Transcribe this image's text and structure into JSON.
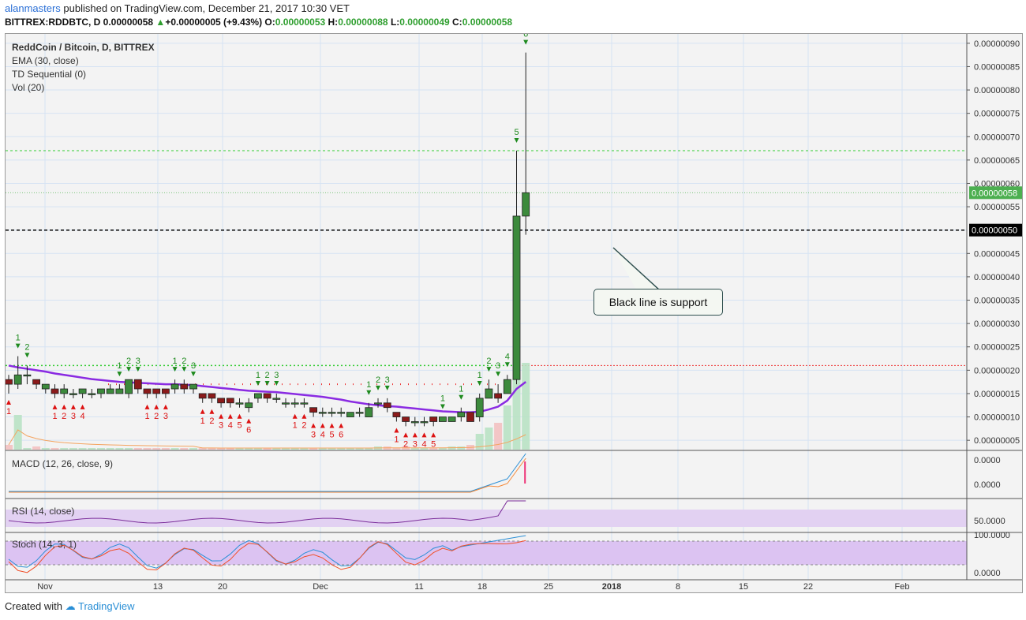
{
  "header": {
    "user": "alanmasters",
    "published": " published on TradingView.com, December 21, 2017 10:30 VET",
    "symbol": "BITTREX:RDDBTC, D",
    "last": "0.00000058",
    "change": "+0.00000005 (+9.43%)",
    "o_label": "O:",
    "o": "0.00000053",
    "h_label": "H:",
    "h": "0.00000088",
    "l_label": "L:",
    "l": "0.00000049",
    "c_label": "C:",
    "c": "0.00000058"
  },
  "legend": {
    "title": "ReddCoin / Bitcoin, D, BITTREX",
    "ema": "EMA (30, close)",
    "td": "TD Sequential (0)",
    "vol": "Vol (20)",
    "macd": "MACD (12, 26, close, 9)",
    "rsi": "RSI (14, close)",
    "stoch": "Stoch (14, 3, 1)"
  },
  "annotation": {
    "text": "Black line is support"
  },
  "price_axis": {
    "ticks": [
      "0.00000090",
      "0.00000085",
      "0.00000080",
      "0.00000075",
      "0.00000070",
      "0.00000065",
      "0.00000060",
      "0.00000055",
      "0.00000045",
      "0.00000040",
      "0.00000035",
      "0.00000030",
      "0.00000025",
      "0.00000020",
      "0.00000015",
      "0.00000010",
      "0.00000005"
    ],
    "last_price_label": "0.00000058",
    "support_label": "0.00000050"
  },
  "macd_axis": {
    "ticks": [
      "0.0000",
      "0.0000"
    ]
  },
  "rsi_axis": {
    "ticks": [
      "50.0000"
    ]
  },
  "stoch_axis": {
    "ticks": [
      "100.0000",
      "0.0000"
    ]
  },
  "time_axis": {
    "labels": [
      "Nov",
      "13",
      "20",
      "Dec",
      "11",
      "18",
      "25",
      "2018",
      "8",
      "15",
      "22",
      "Feb"
    ],
    "bold": [
      "2018"
    ]
  },
  "colors": {
    "up": "#3c8a3c",
    "down": "#8b1a1a",
    "ema": "#8a2be2",
    "support": "#000000",
    "resistance": "#33cc33",
    "red_level": "#ee3333"
  },
  "footer": {
    "created_with": "Created with",
    "brand": "TradingView"
  },
  "chart_data": {
    "type": "candlestick",
    "title": "ReddCoin / Bitcoin, D, BITTREX",
    "y_unit": "BTC",
    "ylim": [
      3e-08,
      9.2e-07
    ],
    "support": 5e-07,
    "levels": [
      6.7e-07,
      2.1e-07
    ],
    "candles": [
      {
        "o": 18,
        "c": 17,
        "h": 19,
        "l": 15,
        "td": "1",
        "tdc": "r"
      },
      {
        "o": 17,
        "c": 19,
        "h": 23,
        "l": 16,
        "td": "1",
        "tdc": "g"
      },
      {
        "o": 19,
        "c": 19,
        "h": 21,
        "l": 17,
        "td": "2",
        "tdc": "g"
      },
      {
        "o": 18,
        "c": 17,
        "h": 18,
        "l": 16
      },
      {
        "o": 16,
        "c": 17,
        "h": 17,
        "l": 15
      },
      {
        "o": 16,
        "c": 15,
        "h": 17,
        "l": 14,
        "td": "1",
        "tdc": "r"
      },
      {
        "o": 15,
        "c": 16,
        "h": 17,
        "l": 14,
        "td": "2",
        "tdc": "r"
      },
      {
        "o": 15,
        "c": 15,
        "h": 16,
        "l": 14,
        "td": "3",
        "tdc": "r"
      },
      {
        "o": 15,
        "c": 16,
        "h": 16,
        "l": 14,
        "td": "4",
        "tdc": "r"
      },
      {
        "o": 15,
        "c": 15,
        "h": 16,
        "l": 14
      },
      {
        "o": 15,
        "c": 16,
        "h": 16,
        "l": 14
      },
      {
        "o": 15,
        "c": 16,
        "h": 17,
        "l": 15
      },
      {
        "o": 15,
        "c": 16,
        "h": 17,
        "l": 15,
        "td": "1",
        "tdc": "g"
      },
      {
        "o": 15,
        "c": 18,
        "h": 18,
        "l": 14,
        "td": "2",
        "tdc": "g"
      },
      {
        "o": 18,
        "c": 16,
        "h": 18,
        "l": 15,
        "td": "3",
        "tdc": "g"
      },
      {
        "o": 16,
        "c": 15,
        "h": 16,
        "l": 14,
        "td": "1",
        "tdc": "r"
      },
      {
        "o": 16,
        "c": 15,
        "h": 16,
        "l": 14,
        "td": "2",
        "tdc": "r"
      },
      {
        "o": 16,
        "c": 15,
        "h": 16,
        "l": 14,
        "td": "3",
        "tdc": "r"
      },
      {
        "o": 16,
        "c": 17,
        "h": 18,
        "l": 15,
        "td": "1",
        "tdc": "g"
      },
      {
        "o": 17,
        "c": 16,
        "h": 18,
        "l": 15,
        "td": "2",
        "tdc": "g"
      },
      {
        "o": 16,
        "c": 17,
        "h": 17,
        "l": 15,
        "td": "3",
        "tdc": "g"
      },
      {
        "o": 15,
        "c": 14,
        "h": 15,
        "l": 13,
        "td": "1",
        "tdc": "r"
      },
      {
        "o": 15,
        "c": 14,
        "h": 15,
        "l": 13,
        "td": "2",
        "tdc": "r"
      },
      {
        "o": 14,
        "c": 13,
        "h": 14,
        "l": 12,
        "td": "3",
        "tdc": "r"
      },
      {
        "o": 14,
        "c": 13,
        "h": 14,
        "l": 12,
        "td": "4",
        "tdc": "r"
      },
      {
        "o": 13,
        "c": 13,
        "h": 14,
        "l": 12,
        "td": "5",
        "tdc": "r"
      },
      {
        "o": 12,
        "c": 13,
        "h": 14,
        "l": 11,
        "td": "6",
        "tdc": "r"
      },
      {
        "o": 14,
        "c": 15,
        "h": 15,
        "l": 13,
        "td": "1",
        "tdc": "g"
      },
      {
        "o": 15,
        "c": 14,
        "h": 15,
        "l": 13,
        "td": "2",
        "tdc": "g"
      },
      {
        "o": 14,
        "c": 14,
        "h": 15,
        "l": 13,
        "td": "3",
        "tdc": "g"
      },
      {
        "o": 13,
        "c": 13,
        "h": 14,
        "l": 12
      },
      {
        "o": 13,
        "c": 13,
        "h": 14,
        "l": 12,
        "td": "1",
        "tdc": "r"
      },
      {
        "o": 13,
        "c": 13,
        "h": 14,
        "l": 12,
        "td": "2",
        "tdc": "r"
      },
      {
        "o": 12,
        "c": 11,
        "h": 12,
        "l": 10,
        "td": "3",
        "tdc": "r"
      },
      {
        "o": 11,
        "c": 11,
        "h": 12,
        "l": 10,
        "td": "4",
        "tdc": "r"
      },
      {
        "o": 11,
        "c": 11,
        "h": 12,
        "l": 10,
        "td": "5",
        "tdc": "r"
      },
      {
        "o": 11,
        "c": 11,
        "h": 12,
        "l": 10,
        "td": "6",
        "tdc": "r"
      },
      {
        "o": 10,
        "c": 11,
        "h": 11,
        "l": 10
      },
      {
        "o": 11,
        "c": 11,
        "h": 12,
        "l": 10
      },
      {
        "o": 10,
        "c": 12,
        "h": 13,
        "l": 10,
        "td": "1",
        "tdc": "g"
      },
      {
        "o": 13,
        "c": 13,
        "h": 14,
        "l": 12,
        "td": "2",
        "tdc": "g"
      },
      {
        "o": 13,
        "c": 12,
        "h": 14,
        "l": 11,
        "td": "3",
        "tdc": "g"
      },
      {
        "o": 11,
        "c": 10,
        "h": 11,
        "l": 9,
        "td": "1",
        "tdc": "r"
      },
      {
        "o": 10,
        "c": 9,
        "h": 10,
        "l": 8,
        "td": "2",
        "tdc": "r"
      },
      {
        "o": 9,
        "c": 9,
        "h": 10,
        "l": 8,
        "td": "3",
        "tdc": "r"
      },
      {
        "o": 9,
        "c": 9,
        "h": 10,
        "l": 8,
        "td": "4",
        "tdc": "r"
      },
      {
        "o": 10,
        "c": 9,
        "h": 10,
        "l": 8,
        "td": "5",
        "tdc": "r"
      },
      {
        "o": 9,
        "c": 10,
        "h": 10,
        "l": 9,
        "td": "1",
        "tdc": "g"
      },
      {
        "o": 9,
        "c": 10,
        "h": 10,
        "l": 9
      },
      {
        "o": 10,
        "c": 11,
        "h": 12,
        "l": 9,
        "td": "1",
        "tdc": "g"
      },
      {
        "o": 11,
        "c": 9,
        "h": 11,
        "l": 9
      },
      {
        "o": 10,
        "c": 14,
        "h": 15,
        "l": 9,
        "td": "1",
        "tdc": "g"
      },
      {
        "o": 14,
        "c": 16,
        "h": 18,
        "l": 14,
        "td": "2",
        "tdc": "g"
      },
      {
        "o": 15,
        "c": 14,
        "h": 17,
        "l": 13,
        "td": "3",
        "tdc": "g"
      },
      {
        "o": 15,
        "c": 18,
        "h": 19,
        "l": 15,
        "td": "4",
        "tdc": "g"
      },
      {
        "o": 18,
        "c": 53,
        "h": 67,
        "l": 17,
        "td": "5",
        "tdc": "g"
      },
      {
        "o": 53,
        "c": 58,
        "h": 88,
        "l": 49,
        "td": "6",
        "tdc": "g"
      }
    ],
    "ema30": [
      21,
      20.6,
      20.3,
      20,
      19.7,
      19.3,
      19,
      18.7,
      18.4,
      18.1,
      17.9,
      17.7,
      17.5,
      17.4,
      17.3,
      17.2,
      17.1,
      17,
      17,
      16.9,
      16.8,
      16.6,
      16.4,
      16.2,
      16,
      15.8,
      15.6,
      15.5,
      15.4,
      15.3,
      15.1,
      14.9,
      14.7,
      14.5,
      14.3,
      14,
      13.7,
      13.3,
      13,
      12.7,
      12.5,
      12.3,
      12.2,
      12,
      11.8,
      11.6,
      11.4,
      11.2,
      11.1,
      11,
      11,
      11.1,
      11.6,
      12.2,
      13.5,
      16,
      17.5
    ],
    "volume": [
      3,
      22,
      1,
      2,
      1,
      1,
      1,
      1,
      1,
      1,
      1,
      1,
      1,
      1,
      1,
      1,
      1,
      1,
      1,
      1,
      1,
      1,
      1,
      1,
      1,
      1,
      1,
      1,
      1,
      1,
      1,
      1,
      1,
      1,
      1,
      1,
      1,
      1,
      1,
      1,
      2,
      2,
      1,
      2,
      1,
      1,
      1,
      1,
      2,
      2,
      3,
      10,
      14,
      17,
      28,
      45,
      55
    ]
  }
}
